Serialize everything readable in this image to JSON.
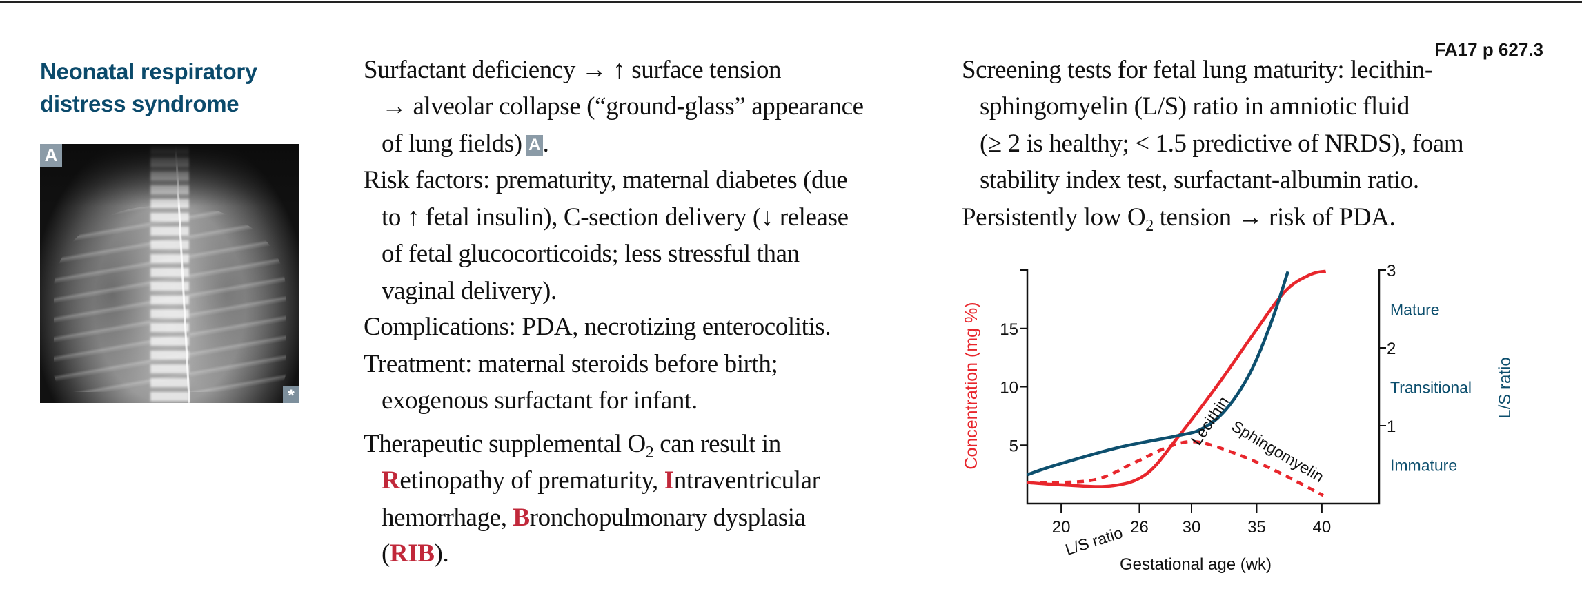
{
  "header": {
    "page_ref": "FA17 p 627.3"
  },
  "topic": {
    "title_line1": "Neonatal respiratory",
    "title_line2": "distress syndrome"
  },
  "figure": {
    "label": "A",
    "corner_mark": "*"
  },
  "middle": {
    "l1": "Surfactant deficiency → ↑ surface tension",
    "l2": "→ alveolar collapse (“ground-glass” appearance",
    "l3": "of lung fields)",
    "l3_badge": "A",
    "l3_end": ".",
    "l4": "Risk factors: prematurity, maternal diabetes (due",
    "l5": "to ↑ fetal insulin), C-section delivery (↓ release",
    "l6": "of fetal glucocorticoids; less stressful than",
    "l7": "vaginal delivery).",
    "l8": "Complications: PDA, necrotizing enterocolitis.",
    "l9": "Treatment: maternal steroids before birth;",
    "l10": "exogenous surfactant for infant.",
    "l11a": "Therapeutic supplemental O",
    "l11sub": "2",
    "l11b": " can result in",
    "l12": [
      "R",
      "etinopathy of prematurity, ",
      "I",
      "ntraventricular"
    ],
    "l13": [
      "hemorrhage, ",
      "B",
      "ronchopulmonary dysplasia"
    ],
    "l14": [
      "(",
      "RIB",
      ")."
    ]
  },
  "right": {
    "l1": "Screening tests for fetal lung maturity: lecithin-",
    "l2": "sphingomyelin (L/S) ratio in amniotic fluid",
    "l3": "(≥ 2 is healthy; < 1.5 predictive of NRDS), foam",
    "l4": "stability index test, surfactant-albumin ratio.",
    "l5a": "Persistently low O",
    "l5sub": "2",
    "l5b": " tension → risk of PDA."
  },
  "chart_data": {
    "type": "line",
    "title": "",
    "xlabel": "Gestational age (wk)",
    "ylabel": "Concentration (mg %)",
    "y2label": "L/S ratio",
    "xlim": [
      17.4,
      44.4
    ],
    "ylim": [
      0,
      20
    ],
    "y2lim": [
      0,
      3
    ],
    "x_ticks": [
      20,
      26,
      30,
      35,
      40
    ],
    "y_ticks": [
      5,
      10,
      15
    ],
    "y2_ticks": [
      1,
      2,
      3
    ],
    "y2_zones": [
      {
        "label": "Mature",
        "at": 2.5
      },
      {
        "label": "Transitional",
        "at": 1.5
      },
      {
        "label": "Immature",
        "at": 0.5
      }
    ],
    "grid": false,
    "colors": {
      "lecithin": "#e8262c",
      "sphingomyelin": "#e8262c",
      "ls_ratio": "#0d4f6e",
      "ylabel": "#e8262c",
      "y2": "#0d4f6e"
    },
    "series": [
      {
        "name": "Lecithin",
        "axis": "left",
        "style": "solid",
        "x": [
          17.4,
          20,
          23.8,
          26.5,
          28.9,
          32.1,
          34.8,
          37.2,
          39.1,
          40.3
        ],
        "y": [
          1.8,
          1.6,
          1.5,
          2.5,
          5.6,
          10.3,
          14.6,
          18.2,
          19.6,
          19.9
        ]
      },
      {
        "name": "Sphingomyelin",
        "axis": "left",
        "style": "dashed",
        "x": [
          17.4,
          22.4,
          25.6,
          28.1,
          30,
          32.1,
          35.9,
          40.1
        ],
        "y": [
          1.8,
          2.0,
          3.5,
          4.8,
          5.3,
          4.8,
          3.1,
          0.7
        ]
      },
      {
        "name": "L/S ratio",
        "axis": "right",
        "style": "solid",
        "x": [
          17.4,
          19.7,
          24.4,
          28.9,
          30.8,
          32.6,
          34.5,
          36.1,
          37.4
        ],
        "y": [
          0.37,
          0.5,
          0.72,
          0.87,
          0.96,
          1.2,
          1.68,
          2.32,
          2.98
        ]
      }
    ],
    "annotations": {
      "ls_ratio": "L/S ratio",
      "lecithin": "Lecithin",
      "sphingomyelin": "Sphingomyelin"
    }
  }
}
